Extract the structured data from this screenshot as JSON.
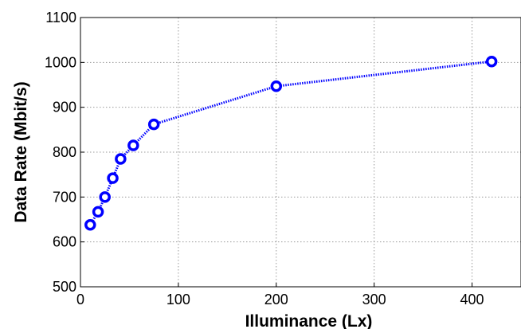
{
  "chart_data": {
    "type": "line",
    "title": "",
    "xlabel": "Illuminance (Lx)",
    "ylabel": "Data Rate (Mbit/s)",
    "xlim": [
      0,
      450
    ],
    "ylim": [
      500,
      1100
    ],
    "xticks": [
      0,
      100,
      200,
      300,
      400
    ],
    "yticks": [
      500,
      600,
      700,
      800,
      900,
      1000,
      1100
    ],
    "grid": true,
    "legend": "none",
    "series": [
      {
        "color": "#0000ff",
        "line_style": "dotted",
        "marker": "circle",
        "x": [
          10,
          18,
          25,
          33,
          41,
          54,
          75,
          200,
          420
        ],
        "y": [
          638,
          667,
          700,
          742,
          785,
          815,
          862,
          947,
          1002
        ]
      }
    ]
  }
}
